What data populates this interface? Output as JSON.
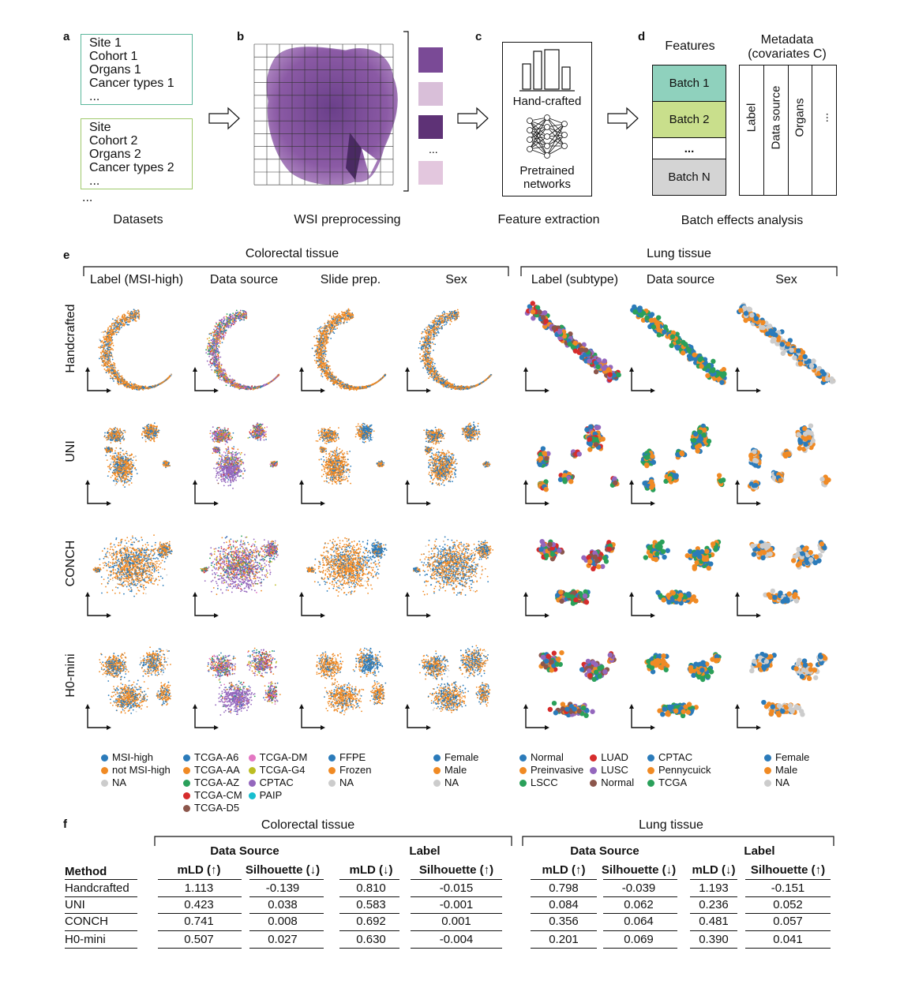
{
  "panel_a": {
    "label": "a",
    "box1": [
      "Site 1",
      "Cohort 1",
      "Organs 1",
      "Cancer types 1",
      "..."
    ],
    "box2": [
      "Site",
      "Cohort 2",
      "Organs 2",
      "Cancer types 2",
      "..."
    ],
    "extra": "...",
    "caption": "Datasets",
    "box1_color": "#5ab79b",
    "box2_color": "#9fc96b"
  },
  "panel_b": {
    "label": "b",
    "caption": "WSI preprocessing",
    "ellipsis": "..."
  },
  "panel_c": {
    "label": "c",
    "handcrafted": "Hand-crafted",
    "pretrained": "Pretrained networks",
    "caption": "Feature extraction"
  },
  "panel_d": {
    "label": "d",
    "features_title": "Features",
    "metadata_title": "Metadata (covariates C)",
    "batches": [
      "Batch 1",
      "Batch 2",
      "...",
      "Batch N"
    ],
    "batch_colors": [
      "#8fd1bd",
      "#c9df8c",
      "#ffffff",
      "#d4d4d4"
    ],
    "metadata_cols": [
      "Label",
      "Data source",
      "Organs",
      "..."
    ],
    "caption": "Batch effects analysis"
  },
  "panel_e": {
    "label": "e",
    "colorectal_title": "Colorectal tissue",
    "lung_title": "Lung tissue",
    "colorectal_cols": [
      "Label (MSI-high)",
      "Data source",
      "Slide prep.",
      "Sex"
    ],
    "lung_cols": [
      "Label (subtype)",
      "Data source",
      "Sex"
    ],
    "rows": [
      "Handcrafted",
      "UNI",
      "CONCH",
      "H0-mini"
    ],
    "legends": [
      {
        "items": [
          {
            "name": "MSI-high",
            "color": "#2b7bba"
          },
          {
            "name": "not MSI-high",
            "color": "#f08a24"
          },
          {
            "name": "NA",
            "color": "#cccccc"
          }
        ]
      },
      {
        "items": [
          {
            "name": "TCGA-A6",
            "color": "#2b7bba"
          },
          {
            "name": "TCGA-AA",
            "color": "#f08a24"
          },
          {
            "name": "TCGA-AZ",
            "color": "#2aa05a"
          },
          {
            "name": "TCGA-CM",
            "color": "#d62c2c"
          },
          {
            "name": "TCGA-D5",
            "color": "#8c564b"
          },
          {
            "name": "TCGA-DM",
            "color": "#e377c2"
          },
          {
            "name": "TCGA-G4",
            "color": "#bcbd22"
          },
          {
            "name": "CPTAC",
            "color": "#9467bd"
          },
          {
            "name": "PAIP",
            "color": "#17becf"
          }
        ]
      },
      {
        "items": [
          {
            "name": "FFPE",
            "color": "#2b7bba"
          },
          {
            "name": "Frozen",
            "color": "#f08a24"
          },
          {
            "name": "NA",
            "color": "#cccccc"
          }
        ]
      },
      {
        "items": [
          {
            "name": "Female",
            "color": "#2b7bba"
          },
          {
            "name": "Male",
            "color": "#f08a24"
          },
          {
            "name": "NA",
            "color": "#cccccc"
          }
        ]
      },
      {
        "items": [
          {
            "name": "Normal",
            "color": "#2b7bba"
          },
          {
            "name": "Preinvasive",
            "color": "#f08a24"
          },
          {
            "name": "LSCC",
            "color": "#2aa05a"
          },
          {
            "name": "LUAD",
            "color": "#d62c2c"
          },
          {
            "name": "LUSC",
            "color": "#9467bd"
          },
          {
            "name": "Normal",
            "color": "#8c564b"
          }
        ]
      },
      {
        "items": [
          {
            "name": "CPTAC",
            "color": "#2b7bba"
          },
          {
            "name": "Pennycuick",
            "color": "#f08a24"
          },
          {
            "name": "TCGA",
            "color": "#2aa05a"
          }
        ]
      },
      {
        "items": [
          {
            "name": "Female",
            "color": "#2b7bba"
          },
          {
            "name": "Male",
            "color": "#f08a24"
          },
          {
            "name": "NA",
            "color": "#cccccc"
          }
        ]
      }
    ]
  },
  "panel_f": {
    "label": "f",
    "colorectal_title": "Colorectal tissue",
    "lung_title": "Lung tissue",
    "group_data_source": "Data Source",
    "group_label": "Label",
    "method_header": "Method",
    "metric_headers": [
      "mLD (↑)",
      "Silhouette (↓)",
      "mLD (↓)",
      "Silhouette (↑)"
    ],
    "rows": [
      {
        "method": "Handcrafted",
        "values": [
          "1.113",
          "-0.139",
          "0.810",
          "-0.015",
          "0.798",
          "-0.039",
          "1.193",
          "-0.151"
        ]
      },
      {
        "method": "UNI",
        "values": [
          "0.423",
          "0.038",
          "0.583",
          "-0.001",
          "0.084",
          "0.062",
          "0.236",
          "0.052"
        ]
      },
      {
        "method": "CONCH",
        "values": [
          "0.741",
          "0.008",
          "0.692",
          "0.001",
          "0.356",
          "0.064",
          "0.481",
          "0.057"
        ]
      },
      {
        "method": "H0-mini",
        "values": [
          "0.507",
          "0.027",
          "0.630",
          "-0.004",
          "0.201",
          "0.069",
          "0.390",
          "0.041"
        ]
      }
    ]
  }
}
